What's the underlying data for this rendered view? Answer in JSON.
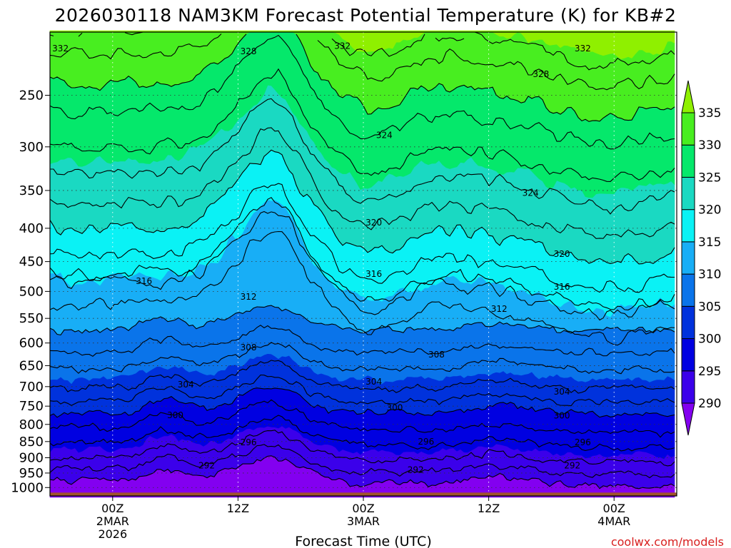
{
  "chart_data": {
    "type": "heatmap",
    "title": "2026030118 NAM3KM Forecast Potential Temperature (K) for KB#2",
    "xlabel": "Forecast Time (UTC)",
    "ylabel": "",
    "credit": "coolwx.com/models",
    "x_ticks": [
      {
        "hours": 6,
        "lines": [
          "00Z",
          "2MAR",
          "2026"
        ]
      },
      {
        "hours": 18,
        "lines": [
          "12Z"
        ]
      },
      {
        "hours": 30,
        "lines": [
          "00Z",
          "3MAR"
        ]
      },
      {
        "hours": 42,
        "lines": [
          "12Z"
        ]
      },
      {
        "hours": 54,
        "lines": [
          "00Z",
          "4MAR"
        ]
      }
    ],
    "x_range_hours": [
      0,
      60
    ],
    "y_scale": "log",
    "y_range": [
      1030,
      200
    ],
    "y_ticks": [
      250,
      300,
      350,
      400,
      450,
      500,
      550,
      600,
      650,
      700,
      750,
      800,
      850,
      900,
      950,
      1000
    ],
    "grid": "dotted",
    "colorbar": {
      "levels": [
        290,
        295,
        300,
        305,
        310,
        315,
        320,
        325,
        330,
        335
      ],
      "colors": [
        "#8300f0",
        "#3b00ea",
        "#0000e1",
        "#0032dc",
        "#0a74ea",
        "#18aef6",
        "#0af2f5",
        "#1ad9c2",
        "#05e86b",
        "#48ee20",
        "#8ff000"
      ],
      "tick_labels": [
        "290",
        "295",
        "300",
        "305",
        "310",
        "315",
        "320",
        "325",
        "330",
        "335"
      ]
    },
    "contour_labels": [
      {
        "value": "332",
        "x": 1,
        "p": 212
      },
      {
        "value": "328",
        "x": 19,
        "p": 214
      },
      {
        "value": "332",
        "x": 28,
        "p": 210
      },
      {
        "value": "332",
        "x": 51,
        "p": 212
      },
      {
        "value": "328",
        "x": 47,
        "p": 232
      },
      {
        "value": "324",
        "x": 32,
        "p": 288
      },
      {
        "value": "324",
        "x": 46,
        "p": 353
      },
      {
        "value": "320",
        "x": 31,
        "p": 392
      },
      {
        "value": "320",
        "x": 49,
        "p": 438
      },
      {
        "value": "316",
        "x": 9,
        "p": 482
      },
      {
        "value": "316",
        "x": 31,
        "p": 470
      },
      {
        "value": "316",
        "x": 49,
        "p": 492
      },
      {
        "value": "312",
        "x": 19,
        "p": 510
      },
      {
        "value": "312",
        "x": 43,
        "p": 532
      },
      {
        "value": "308",
        "x": 19,
        "p": 610
      },
      {
        "value": "308",
        "x": 37,
        "p": 625
      },
      {
        "value": "304",
        "x": 13,
        "p": 695
      },
      {
        "value": "304",
        "x": 31,
        "p": 688
      },
      {
        "value": "304",
        "x": 49,
        "p": 713
      },
      {
        "value": "300",
        "x": 12,
        "p": 775
      },
      {
        "value": "300",
        "x": 33,
        "p": 754
      },
      {
        "value": "300",
        "x": 49,
        "p": 776
      },
      {
        "value": "296",
        "x": 19,
        "p": 852
      },
      {
        "value": "296",
        "x": 36,
        "p": 850
      },
      {
        "value": "296",
        "x": 51,
        "p": 853
      },
      {
        "value": "292",
        "x": 15,
        "p": 925
      },
      {
        "value": "292",
        "x": 35,
        "p": 940
      },
      {
        "value": "292",
        "x": 50,
        "p": 925
      }
    ]
  }
}
